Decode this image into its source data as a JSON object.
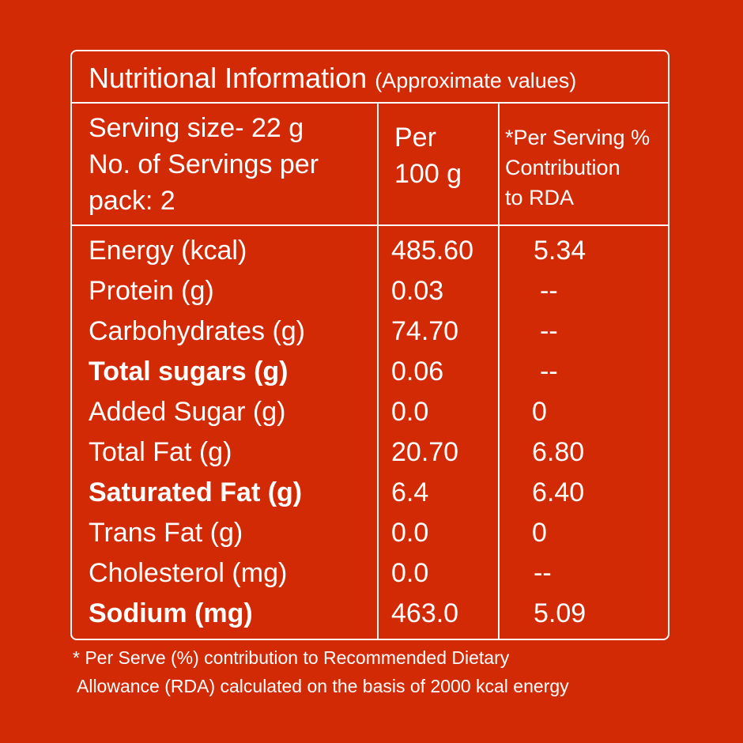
{
  "title": {
    "main": "Nutritional Information",
    "sub": "(Approximate values)"
  },
  "header": {
    "serving_line1": "Serving size- 22 g",
    "serving_line2": "No. of Servings per",
    "serving_line3": "pack: 2",
    "per_line1": "Per",
    "per_line2": "100 g",
    "rda_line1": "*Per Serving %",
    "rda_line2": "Contribution",
    "rda_line3": "to RDA"
  },
  "rows": [
    {
      "name": "Energy (kcal)",
      "per100": "485.60",
      "rda": "5.34",
      "bold": false
    },
    {
      "name": "Protein (g)",
      "per100": "0.03",
      "rda": "--",
      "bold": false
    },
    {
      "name": "Carbohydrates (g)",
      "per100": "74.70",
      "rda": "--",
      "bold": false
    },
    {
      "name": "Total sugars (g)",
      "per100": "0.06",
      "rda": "--",
      "bold": true
    },
    {
      "name": "Added Sugar (g)",
      "per100": "0.0",
      "rda": "0",
      "bold": false
    },
    {
      "name": "Total Fat (g)",
      "per100": "20.70",
      "rda": "6.80",
      "bold": false
    },
    {
      "name": "Saturated Fat (g)",
      "per100": "6.4",
      "rda": "6.40",
      "bold": true
    },
    {
      "name": "Trans Fat (g)",
      "per100": "0.0",
      "rda": "0",
      "bold": false
    },
    {
      "name": "Cholesterol (mg)",
      "per100": "0.0",
      "rda": "--",
      "bold": false
    },
    {
      "name": "Sodium (mg)",
      "per100": "463.0",
      "rda": "5.09",
      "bold": true
    }
  ],
  "footnote": {
    "line1": "* Per Serve (%) contribution to Recommended Dietary",
    "line2": "Allowance (RDA) calculated on the basis of 2000 kcal energy"
  },
  "colors": {
    "background": "#d32a06",
    "text": "#ffffff"
  }
}
